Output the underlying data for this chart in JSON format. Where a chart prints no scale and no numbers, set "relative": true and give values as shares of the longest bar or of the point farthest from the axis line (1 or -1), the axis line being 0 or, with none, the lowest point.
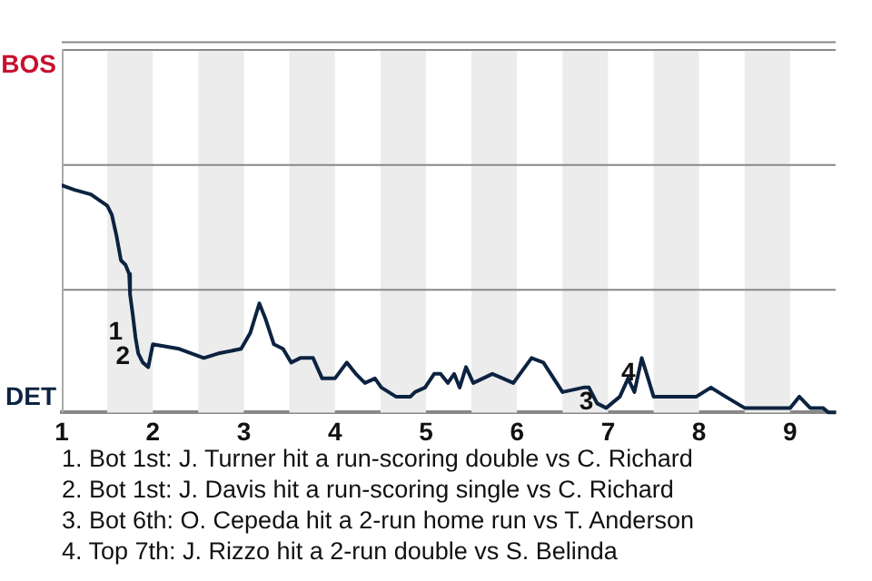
{
  "chart_data": {
    "type": "line",
    "relative": true,
    "x": [
      1,
      1.14,
      1.32,
      1.5,
      1.55,
      1.6,
      1.65,
      1.7,
      1.74,
      1.75,
      1.78,
      1.81,
      1.84,
      1.89,
      1.95,
      2,
      2.29,
      2.56,
      2.72,
      2.97,
      3.07,
      3.17,
      3.24,
      3.33,
      3.43,
      3.52,
      3.62,
      3.76,
      3.86,
      4,
      4.13,
      4.23,
      4.33,
      4.44,
      4.51,
      4.67,
      4.83,
      4.88,
      4.99,
      5.09,
      5.16,
      5.24,
      5.31,
      5.37,
      5.44,
      5.52,
      5.73,
      5.96,
      6.16,
      6.29,
      6.5,
      6.73,
      6.79,
      6.88,
      6.98,
      7.13,
      7.22,
      7.29,
      7.37,
      7.44,
      7.5,
      7.97,
      8.13,
      8.29,
      8.5,
      9,
      9.1,
      9.22,
      9.36,
      9.42,
      9.5
    ],
    "series": [
      {
        "color": "#0c2340",
        "values": [
          1,
          0.98,
          0.96,
          0.91,
          0.87,
          0.78,
          0.67,
          0.65,
          0.61,
          0.52,
          0.43,
          0.33,
          0.26,
          0.22,
          0.2,
          0.3,
          0.28,
          0.24,
          0.26,
          0.28,
          0.35,
          0.48,
          0.41,
          0.3,
          0.28,
          0.22,
          0.24,
          0.24,
          0.15,
          0.15,
          0.22,
          0.17,
          0.13,
          0.15,
          0.11,
          0.07,
          0.07,
          0.09,
          0.11,
          0.17,
          0.17,
          0.13,
          0.17,
          0.11,
          0.2,
          0.13,
          0.17,
          0.13,
          0.24,
          0.22,
          0.09,
          0.11,
          0.11,
          0.04,
          0.02,
          0.07,
          0.15,
          0.09,
          0.24,
          0.15,
          0.07,
          0.07,
          0.11,
          0.07,
          0.02,
          0.02,
          0.07,
          0.02,
          0.02,
          0,
          0
        ]
      }
    ],
    "xlim": [
      1,
      9.5
    ],
    "xticks": [
      1,
      2,
      3,
      4,
      5,
      6,
      7,
      8,
      9
    ],
    "ref_lines": [
      {
        "axis": "y",
        "value": 0.54,
        "color": "#888888"
      },
      {
        "axis": "y",
        "value": 1.09,
        "color": "#888888"
      },
      {
        "axis": "y",
        "value": 1.63,
        "color": "#888888"
      }
    ],
    "marker": "none",
    "bands": [
      {
        "axis": "x",
        "from": 1.5,
        "to": 2,
        "color": "#ececec"
      },
      {
        "axis": "x",
        "from": 2.5,
        "to": 3,
        "color": "#ececec"
      },
      {
        "axis": "x",
        "from": 3.5,
        "to": 4,
        "color": "#ececec"
      },
      {
        "axis": "x",
        "from": 4.5,
        "to": 5,
        "color": "#ececec"
      },
      {
        "axis": "x",
        "from": 5.5,
        "to": 6,
        "color": "#ececec"
      },
      {
        "axis": "x",
        "from": 6.5,
        "to": 7,
        "color": "#ececec"
      },
      {
        "axis": "x",
        "from": 7.5,
        "to": 8,
        "color": "#ececec"
      },
      {
        "axis": "x",
        "from": 8.5,
        "to": 9,
        "color": "#ececec"
      }
    ],
    "annotations": [
      "BOS",
      "DET",
      {
        "text": "1",
        "x": 1.81,
        "y": 0.33
      },
      {
        "text": "2",
        "x": 1.89,
        "y": 0.22
      },
      {
        "text": "3",
        "x": 6.98,
        "y": 0.02
      },
      {
        "text": "4",
        "x": 7.44,
        "y": 0.15
      },
      "1. Bot 1st: J. Turner hit a run-scoring double vs C. Richard",
      "2. Bot 1st: J. Davis hit a run-scoring single vs C. Richard",
      "3. Bot 6th: O. Cepeda hit a 2-run home run vs T. Anderson",
      "4. Top 7th: J. Rizzo hit a 2-run double vs S. Belinda"
    ]
  }
}
